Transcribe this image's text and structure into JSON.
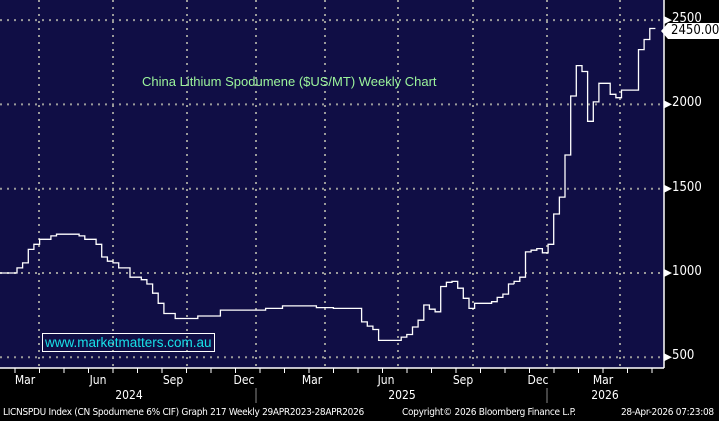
{
  "chart_data": {
    "type": "line",
    "title": "China Lithium Spodumene ($US/MT) Weekly Chart",
    "frequency": "weekly",
    "start_week": "2024-02-12",
    "end_week": "2026-04-24",
    "values": [
      1000,
      1000,
      1000,
      1030,
      1060,
      1140,
      1170,
      1200,
      1200,
      1220,
      1230,
      1230,
      1230,
      1230,
      1220,
      1200,
      1200,
      1170,
      1095,
      1070,
      1060,
      1030,
      1030,
      975,
      975,
      960,
      935,
      880,
      820,
      760,
      760,
      730,
      730,
      730,
      730,
      745,
      745,
      745,
      745,
      780,
      780,
      780,
      780,
      780,
      780,
      780,
      780,
      790,
      790,
      790,
      805,
      805,
      805,
      805,
      805,
      805,
      795,
      795,
      795,
      790,
      790,
      790,
      790,
      790,
      710,
      685,
      665,
      600,
      600,
      600,
      600,
      620,
      635,
      680,
      720,
      810,
      785,
      770,
      920,
      945,
      950,
      910,
      850,
      790,
      820,
      820,
      820,
      830,
      855,
      875,
      935,
      950,
      975,
      1125,
      1135,
      1145,
      1120,
      1170,
      1350,
      1450,
      1700,
      2050,
      2230,
      2195,
      1900,
      2015,
      2125,
      2125,
      2060,
      2040,
      2085,
      2085,
      2085,
      2325,
      2385,
      2450
    ],
    "last_price": "2450.00",
    "ylim": [
      450,
      2550
    ],
    "y_ticks": [
      "500",
      "1000",
      "1500",
      "2000",
      "2500"
    ],
    "x_month_labels": [
      "Mar",
      "Jun",
      "Sep",
      "Dec",
      "Mar",
      "Jun",
      "Sep",
      "Dec",
      "Mar"
    ],
    "x_year_labels": [
      "2024",
      "2025",
      "2026"
    ],
    "grid": true,
    "colors": {
      "background": "#100e45",
      "line": "#ffffff",
      "grid": "#9a9a9a"
    }
  },
  "watermark": "www.marketmatters.com.au",
  "footer": {
    "security": "LICNSPDU Index (CN Spodumene 6% CIF) Graph 217 Weekly 29APR2023-28APR2026",
    "copyright": "Copyright© 2026 Bloomberg Finance L.P.",
    "timestamp": "28-Apr-2026 07:23:08"
  }
}
